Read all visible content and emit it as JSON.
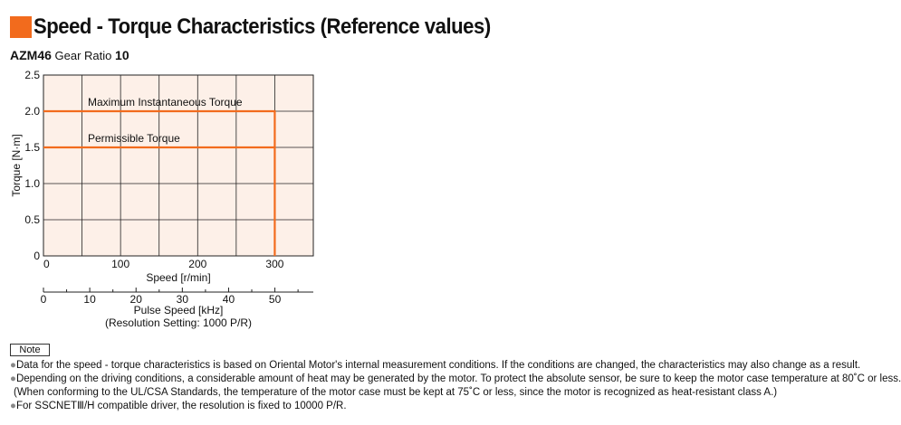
{
  "header": {
    "title": "Speed - Torque Characteristics (Reference values)",
    "accent_color": "#f26b1d",
    "model": "AZM46",
    "gear_ratio_label": "Gear Ratio",
    "gear_ratio_value": "10"
  },
  "chart_data": {
    "type": "line",
    "ylabel": "Torque [N·m]",
    "xlabel": "Speed [r/min]",
    "xlim": [
      0,
      350
    ],
    "ylim": [
      0,
      2.5
    ],
    "x_ticks": [
      0,
      100,
      200,
      300
    ],
    "y_ticks": [
      "0",
      "0.5",
      "1.0",
      "1.5",
      "2.0",
      "2.5"
    ],
    "grid": true,
    "plot_background": "#fdf0e8",
    "line_color": "#f26b1d",
    "secondary_axis": {
      "label": "Pulse Speed [kHz]",
      "sublabel": "(Resolution Setting: 1000 P/R)",
      "ticks": [
        0,
        10,
        20,
        30,
        40,
        50
      ],
      "max": 58.3
    },
    "series": [
      {
        "name": "Maximum Instantaneous Torque",
        "x": [
          0,
          300,
          300
        ],
        "y": [
          2.0,
          2.0,
          0
        ]
      },
      {
        "name": "Permissible Torque",
        "x": [
          0,
          300
        ],
        "y": [
          1.5,
          1.5
        ]
      }
    ]
  },
  "notes": {
    "label": "Note",
    "items": [
      "Data for the speed - torque characteristics is based on Oriental Motor's internal measurement conditions. If the conditions are changed, the characteristics may also change as a result.",
      "Depending on the driving conditions, a considerable amount of heat may be generated by the motor.  To protect the absolute sensor, be sure to keep the motor case temperature at 80˚C or less.",
      "(When conforming to the UL/CSA Standards, the temperature of the motor case must be kept at 75˚C or less, since the motor is recognized as heat-resistant class A.)",
      "For SSCNETⅢ/H compatible driver, the resolution is fixed to 10000 P/R."
    ]
  }
}
